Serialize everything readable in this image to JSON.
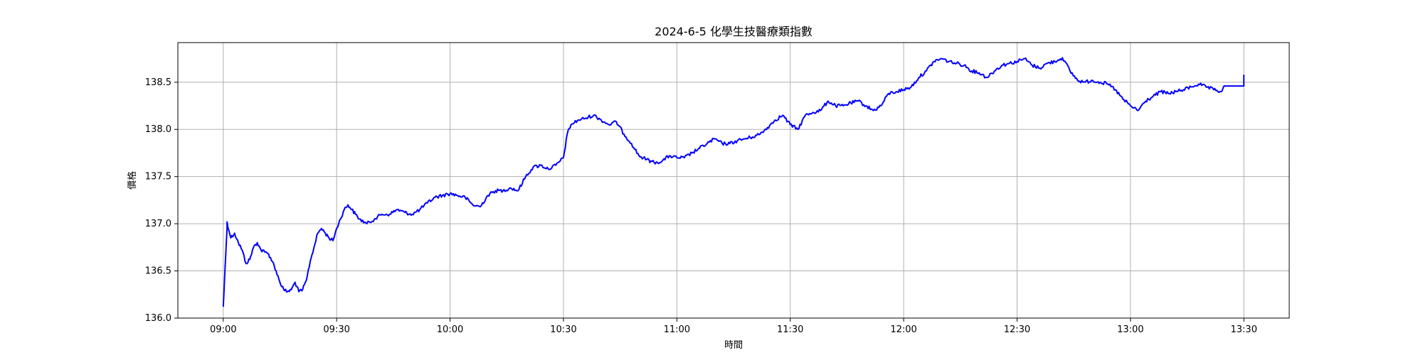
{
  "chart_data": {
    "type": "line",
    "title": "2024-6-5 化學生技醫療類指數",
    "xlabel": "時間",
    "ylabel": "價格",
    "xlim": [
      "08:48",
      "13:42"
    ],
    "ylim": [
      136.0,
      138.92
    ],
    "grid": true,
    "x_ticks": [
      "09:00",
      "09:30",
      "10:00",
      "10:30",
      "11:00",
      "11:30",
      "12:00",
      "12:30",
      "13:00",
      "13:30"
    ],
    "y_ticks": [
      "136.0",
      "136.5",
      "137.0",
      "137.5",
      "138.0",
      "138.5"
    ],
    "line_color": "#0000ff",
    "series": [
      {
        "x": [
          "09:00",
          "09:01",
          "09:01",
          "09:02",
          "09:03",
          "09:04",
          "09:05",
          "09:06",
          "09:07",
          "09:08",
          "09:09",
          "09:10",
          "09:11",
          "09:12",
          "09:13",
          "09:14",
          "09:15",
          "09:16",
          "09:17",
          "09:18",
          "09:19",
          "09:20",
          "09:21",
          "09:22",
          "09:23",
          "09:24",
          "09:25",
          "09:26",
          "09:27",
          "09:28",
          "09:29",
          "09:30",
          "09:31",
          "09:32",
          "09:33",
          "09:34",
          "09:35",
          "09:36",
          "09:38",
          "09:40",
          "09:42",
          "09:44",
          "09:46",
          "09:48",
          "09:50",
          "09:52",
          "09:54",
          "09:56",
          "09:58",
          "10:00",
          "10:02",
          "10:04",
          "10:06",
          "10:08",
          "10:10",
          "10:12",
          "10:14",
          "10:16",
          "10:18",
          "10:20",
          "10:22",
          "10:24",
          "10:26",
          "10:28",
          "10:30",
          "10:31",
          "10:32",
          "10:34",
          "10:36",
          "10:38",
          "10:40",
          "10:42",
          "10:44",
          "10:46",
          "10:48",
          "10:50",
          "10:52",
          "10:54",
          "10:56",
          "10:58",
          "11:00",
          "11:02",
          "11:04",
          "11:06",
          "11:08",
          "11:10",
          "11:12",
          "11:14",
          "11:16",
          "11:18",
          "11:20",
          "11:22",
          "11:24",
          "11:26",
          "11:28",
          "11:30",
          "11:32",
          "11:34",
          "11:36",
          "11:38",
          "11:40",
          "11:42",
          "11:44",
          "11:46",
          "11:48",
          "11:50",
          "11:52",
          "11:54",
          "11:56",
          "11:58",
          "12:00",
          "12:02",
          "12:04",
          "12:06",
          "12:08",
          "12:10",
          "12:12",
          "12:14",
          "12:16",
          "12:18",
          "12:20",
          "12:22",
          "12:24",
          "12:26",
          "12:28",
          "12:30",
          "12:32",
          "12:34",
          "12:36",
          "12:38",
          "12:40",
          "12:42",
          "12:44",
          "12:46",
          "12:48",
          "12:50",
          "12:52",
          "12:54",
          "12:56",
          "12:58",
          "13:00",
          "13:02",
          "13:04",
          "13:06",
          "13:08",
          "13:10",
          "13:12",
          "13:14",
          "13:16",
          "13:18",
          "13:20",
          "13:22",
          "13:24",
          "13:25",
          "13:30",
          "13:30"
        ],
        "y": [
          136.12,
          136.95,
          137.02,
          136.85,
          136.9,
          136.8,
          136.72,
          136.58,
          136.62,
          136.75,
          136.8,
          136.72,
          136.7,
          136.68,
          136.6,
          136.5,
          136.38,
          136.3,
          136.28,
          136.3,
          136.38,
          136.28,
          136.3,
          136.4,
          136.6,
          136.75,
          136.9,
          136.95,
          136.9,
          136.85,
          136.82,
          136.95,
          137.05,
          137.15,
          137.2,
          137.15,
          137.1,
          137.05,
          137.0,
          137.05,
          137.1,
          137.1,
          137.15,
          137.12,
          137.1,
          137.15,
          137.22,
          137.28,
          137.3,
          137.32,
          137.3,
          137.28,
          137.2,
          137.18,
          137.3,
          137.35,
          137.35,
          137.38,
          137.35,
          137.5,
          137.6,
          137.62,
          137.58,
          137.62,
          137.7,
          137.95,
          138.05,
          138.1,
          138.12,
          138.15,
          138.1,
          138.05,
          138.08,
          137.95,
          137.85,
          137.72,
          137.68,
          137.65,
          137.66,
          137.72,
          137.7,
          137.7,
          137.75,
          137.8,
          137.85,
          137.9,
          137.85,
          137.85,
          137.88,
          137.9,
          137.92,
          137.95,
          138.02,
          138.1,
          138.15,
          138.05,
          138.0,
          138.15,
          138.18,
          138.2,
          138.3,
          138.25,
          138.25,
          138.28,
          138.3,
          138.25,
          138.2,
          138.25,
          138.38,
          138.4,
          138.42,
          138.45,
          138.55,
          138.62,
          138.72,
          138.75,
          138.72,
          138.7,
          138.68,
          138.62,
          138.6,
          138.55,
          138.62,
          138.68,
          138.7,
          138.72,
          138.75,
          138.68,
          138.65,
          138.7,
          138.72,
          138.76,
          138.62,
          138.52,
          138.5,
          138.52,
          138.5,
          138.48,
          138.42,
          138.32,
          138.25,
          138.2,
          138.3,
          138.35,
          138.4,
          138.38,
          138.4,
          138.42,
          138.45,
          138.48,
          138.45,
          138.42,
          138.4,
          138.46,
          138.46,
          138.58
        ]
      }
    ]
  }
}
